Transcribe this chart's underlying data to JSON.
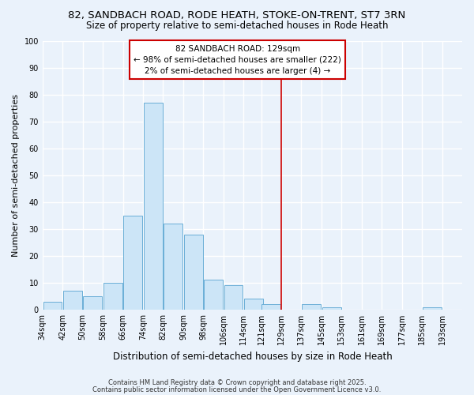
{
  "title": "82, SANDBACH ROAD, RODE HEATH, STOKE-ON-TRENT, ST7 3RN",
  "subtitle": "Size of property relative to semi-detached houses in Rode Heath",
  "xlabel": "Distribution of semi-detached houses by size in Rode Heath",
  "ylabel": "Number of semi-detached properties",
  "bin_left_edges": [
    34,
    42,
    50,
    58,
    66,
    74,
    82,
    90,
    98,
    106,
    114,
    121,
    129,
    137,
    145,
    153,
    161,
    169,
    177,
    185,
    193
  ],
  "bin_width": 8,
  "bar_heights": [
    3,
    7,
    5,
    10,
    35,
    77,
    32,
    28,
    11,
    9,
    4,
    2,
    0,
    2,
    1,
    0,
    0,
    0,
    0,
    1,
    0
  ],
  "bar_fill_color": "#cce5f7",
  "bar_edge_color": "#6aaed6",
  "vline_x": 129,
  "vline_color": "#cc0000",
  "ylim": [
    0,
    100
  ],
  "yticks": [
    0,
    10,
    20,
    30,
    40,
    50,
    60,
    70,
    80,
    90,
    100
  ],
  "xtick_labels": [
    "34sqm",
    "42sqm",
    "50sqm",
    "58sqm",
    "66sqm",
    "74sqm",
    "82sqm",
    "90sqm",
    "98sqm",
    "106sqm",
    "114sqm",
    "121sqm",
    "129sqm",
    "137sqm",
    "145sqm",
    "153sqm",
    "161sqm",
    "169sqm",
    "177sqm",
    "185sqm",
    "193sqm"
  ],
  "background_color": "#eaf2fb",
  "grid_color": "#ffffff",
  "annotation_title": "82 SANDBACH ROAD: 129sqm",
  "annotation_line1": "← 98% of semi-detached houses are smaller (222)",
  "annotation_line2": "2% of semi-detached houses are larger (4) →",
  "annotation_box_facecolor": "#ffffff",
  "annotation_box_edgecolor": "#cc0000",
  "footnote1": "Contains HM Land Registry data © Crown copyright and database right 2025.",
  "footnote2": "Contains public sector information licensed under the Open Government Licence v3.0.",
  "title_fontsize": 9.5,
  "subtitle_fontsize": 8.5,
  "xlabel_fontsize": 8.5,
  "ylabel_fontsize": 8,
  "tick_fontsize": 7,
  "annotation_fontsize": 7.5,
  "footnote_fontsize": 6.0
}
